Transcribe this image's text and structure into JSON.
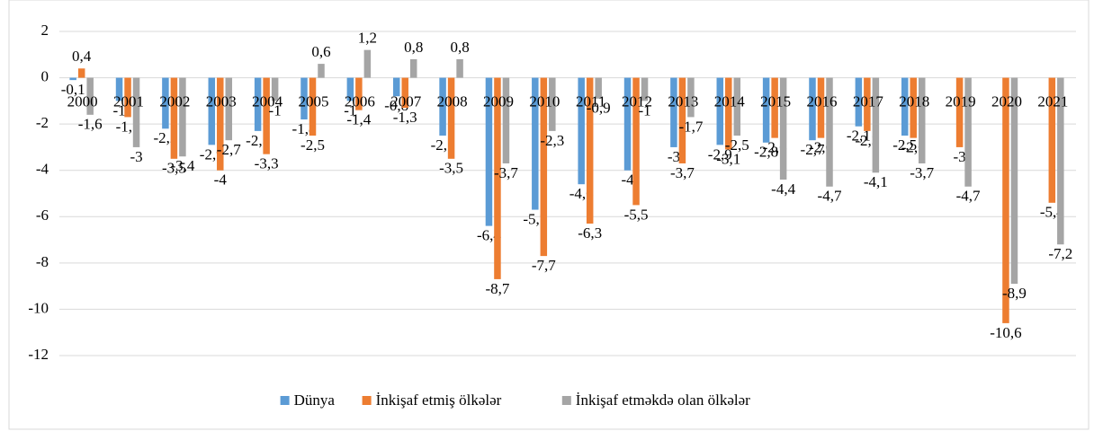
{
  "chart_data": {
    "type": "bar",
    "categories": [
      "2000",
      "2001",
      "2002",
      "2003",
      "2004",
      "2005",
      "2006",
      "2007",
      "2008",
      "2009",
      "2010",
      "2011",
      "2012",
      "2013",
      "2014",
      "2015",
      "2016",
      "2017",
      "2018",
      "2019",
      "2020",
      "2021"
    ],
    "series": [
      {
        "name": "Dünya",
        "color": "#5b9bd5",
        "values": [
          -0.1,
          -1,
          -2.2,
          -2.9,
          -2.3,
          -1.8,
          -1,
          -0.8,
          -2.5,
          -6.4,
          -5.7,
          -4.6,
          -4,
          -3,
          -2.9,
          -2.8,
          -2.7,
          -2.1,
          -2.5,
          null,
          null,
          null
        ],
        "value_labels": [
          "-0,1",
          "-1",
          "-2,2",
          "-2,9",
          "-2,3",
          "-1,8",
          "-1",
          "-0,8",
          "-2,5",
          "-6,4",
          "-5,7",
          "-4,6",
          "-4",
          "-3",
          "-2,9",
          "-2,8",
          "-2,7",
          "-2,1",
          "-2,5",
          null,
          null,
          null
        ]
      },
      {
        "name": "İnkişaf etmiş ölkələr",
        "color": "#ed7d31",
        "values": [
          0.4,
          -1.7,
          -3.5,
          -4,
          -3.3,
          -2.5,
          -1.4,
          -1.3,
          -3.5,
          -8.7,
          -7.7,
          -6.3,
          -5.5,
          -3.7,
          -3.1,
          -2.6,
          -2.6,
          -2.3,
          -2.6,
          -3,
          -10.6,
          -5.4
        ],
        "value_labels": [
          "0,4",
          "-1,7",
          "-3,5",
          "-4",
          "-3,3",
          "-2,5",
          "-1,4",
          "-1,3",
          "-3,5",
          "-8,7",
          "-7,7",
          "-6,3",
          "-5,5",
          "-3,7",
          "-3,1",
          "-2,6",
          "-2,6",
          "-2,3",
          "-2,6",
          "-3",
          "-10,6",
          "-5,4"
        ]
      },
      {
        "name": "İnkişaf etməkdə olan ölkələr",
        "color": "#a5a5a5",
        "values": [
          -1.6,
          -3,
          -3.4,
          -2.7,
          -1,
          0.6,
          1.2,
          0.8,
          0.8,
          -3.7,
          -2.3,
          -0.9,
          -1,
          -1.7,
          -2.5,
          -4.4,
          -4.7,
          -4.1,
          -3.7,
          -4.7,
          -8.9,
          -7.2
        ],
        "value_labels": [
          "-1,6",
          "-3",
          "-3,4",
          "-2,7",
          "-1",
          "0,6",
          "1,2",
          "0,8",
          "0,8",
          "-3,7",
          "-2,3",
          "-0,9",
          "-1",
          "-1,7",
          "-2,5",
          "-4,4",
          "-4,7",
          "-4,1",
          "-3,7",
          "-4,7",
          "-8,9",
          "-7,2"
        ]
      }
    ],
    "ylim": [
      -12,
      2
    ],
    "yticks": [
      -12,
      -10,
      -8,
      -6,
      -4,
      -2,
      0,
      2
    ],
    "grid": true,
    "legend": "bottom"
  }
}
